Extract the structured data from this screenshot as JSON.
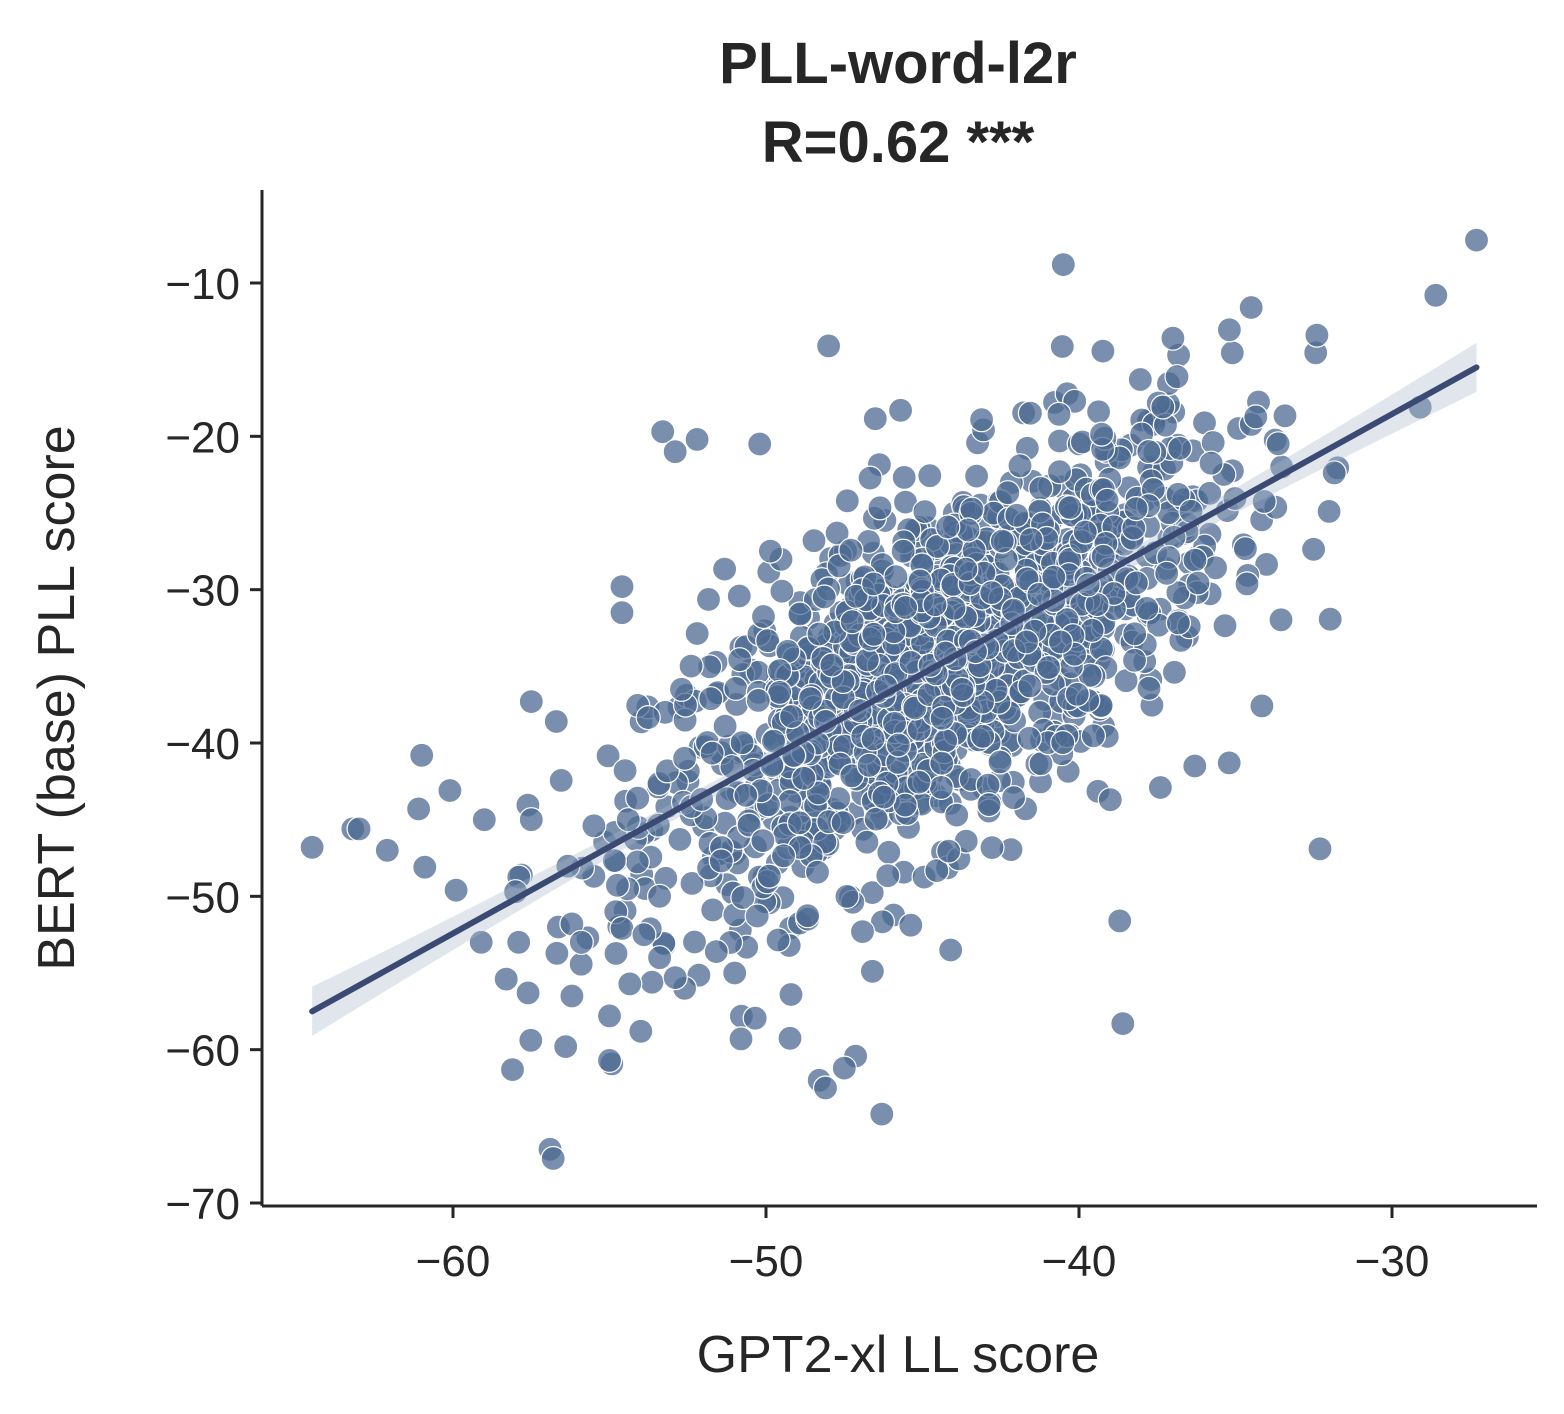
{
  "chart_data": {
    "type": "scatter",
    "title_line1": "PLL-word-l2r",
    "title_line2": "R=0.62 ***",
    "xlabel": "GPT2-xl LL score",
    "ylabel": "BERT (base) PLL score",
    "xlim": [
      -65,
      -24.5
    ],
    "ylim": [
      -70,
      -4
    ],
    "xticks": [
      -60,
      -50,
      -40,
      -30
    ],
    "yticks": [
      -70,
      -60,
      -50,
      -40,
      -30,
      -20,
      -10
    ],
    "x_tick_labels": [
      "−60",
      "−50",
      "−40",
      "−30"
    ],
    "y_tick_labels": [
      "−70",
      "−60",
      "−50",
      "−40",
      "−30",
      "−20",
      "−10"
    ],
    "regression": {
      "x": [
        -64.5,
        -27.3
      ],
      "y": [
        -57.5,
        -15.5
      ],
      "ci_halfwidth_ends": 1.6,
      "ci_halfwidth_mid": 0.4
    },
    "colors": {
      "points": "#4c6a92",
      "regression_line": "#3b4a72",
      "ci_band": "#a9b6cc"
    },
    "grid": false,
    "points_x": [
      -64.5,
      -63.2,
      -63.0,
      -62.1,
      -61.1,
      -61.0,
      -60.9,
      -60.1,
      -59.9,
      -59.1,
      -59.0,
      -58.3,
      -58.1,
      -58.0,
      -57.9,
      -57.6,
      -57.5,
      -57.5,
      -56.9,
      -56.8,
      -56.7,
      -56.4,
      -56.2,
      -56.2,
      -55.9,
      -55.5,
      -55.0,
      -55.0,
      -54.8,
      -54.6,
      -54.5,
      -54.4,
      -54.0,
      -53.9,
      -53.4,
      -53.3,
      -52.9,
      -52.6,
      -52.9,
      -52.6,
      -52.2,
      -52.7,
      -54.6,
      -54.6,
      -54.1,
      -29.1,
      -28.6,
      -27.3,
      -40.5,
      -32.3,
      -38.6,
      -32.4,
      -46.3,
      -48.3,
      -48.1,
      -47.5,
      -49.2,
      -44.1,
      -50.8,
      -53.4,
      -51.0,
      -50.2,
      -38.7,
      -37.4,
      -35.2,
      -39.0,
      -34.5,
      -45.7,
      -48.0,
      -36.3
    ],
    "points_y": [
      -46.8,
      -45.6,
      -45.6,
      -47.0,
      -44.3,
      -40.8,
      -48.1,
      -43.1,
      -49.6,
      -53.0,
      -45.0,
      -55.4,
      -61.3,
      -49.7,
      -53.0,
      -56.3,
      -45.0,
      -37.3,
      -66.5,
      -67.1,
      -38.6,
      -59.8,
      -56.5,
      -51.8,
      -53.0,
      -45.4,
      -60.7,
      -57.8,
      -51.0,
      -52.1,
      -41.8,
      -45.0,
      -58.8,
      -52.5,
      -50.0,
      -19.7,
      -21.0,
      -56.0,
      -55.3,
      -41.0,
      -20.2,
      -36.5,
      -29.8,
      -31.5,
      -43.6,
      -18.1,
      -10.8,
      -7.2,
      -8.8,
      -46.9,
      -58.3,
      -13.4,
      -64.2,
      -62.0,
      -62.5,
      -61.2,
      -56.4,
      -53.5,
      -59.3,
      -54.0,
      -55.0,
      -20.5,
      -51.6,
      -42.9,
      -41.3,
      -43.7,
      -11.6,
      -18.3,
      -14.1,
      -41.5
    ]
  }
}
